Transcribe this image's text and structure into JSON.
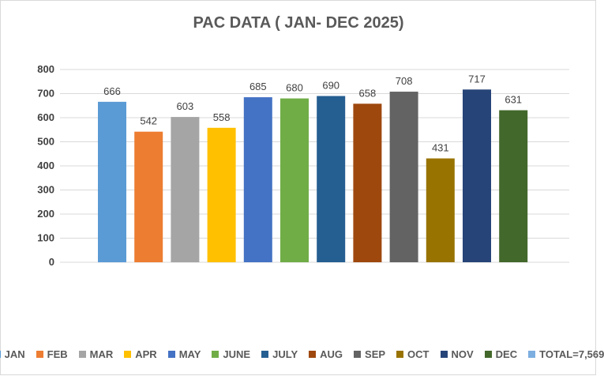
{
  "chart_data": {
    "type": "bar",
    "title": "PAC DATA ( JAN- DEC 2025)",
    "xlabel": "",
    "ylabel": "",
    "ylim": [
      0,
      800
    ],
    "yticks": [
      0,
      100,
      200,
      300,
      400,
      500,
      600,
      700,
      800
    ],
    "grid": true,
    "legend_position": "bottom",
    "categories": [
      "JAN",
      "FEB",
      "MAR",
      "APR",
      "MAY",
      "JUNE",
      "JULY",
      "AUG",
      "SEP",
      "OCT",
      "NOV",
      "DEC"
    ],
    "values": [
      666,
      542,
      603,
      558,
      685,
      680,
      690,
      658,
      708,
      431,
      717,
      631
    ],
    "colors": [
      "#5b9bd5",
      "#ed7d31",
      "#a5a5a5",
      "#ffc000",
      "#4472c4",
      "#70ad47",
      "#255e91",
      "#9e480e",
      "#636363",
      "#997300",
      "#264478",
      "#43682b"
    ],
    "legend": [
      {
        "label": "JAN",
        "color": "#5b9bd5"
      },
      {
        "label": "FEB",
        "color": "#ed7d31"
      },
      {
        "label": "MAR",
        "color": "#a5a5a5"
      },
      {
        "label": "APR",
        "color": "#ffc000"
      },
      {
        "label": "MAY",
        "color": "#4472c4"
      },
      {
        "label": "JUNE",
        "color": "#70ad47"
      },
      {
        "label": "JULY",
        "color": "#255e91"
      },
      {
        "label": "AUG",
        "color": "#9e480e"
      },
      {
        "label": "SEP",
        "color": "#636363"
      },
      {
        "label": "OCT",
        "color": "#997300"
      },
      {
        "label": "NOV",
        "color": "#264478"
      },
      {
        "label": "DEC",
        "color": "#43682b"
      },
      {
        "label": "TOTAL=7,569",
        "color": "#7caee0"
      }
    ]
  }
}
